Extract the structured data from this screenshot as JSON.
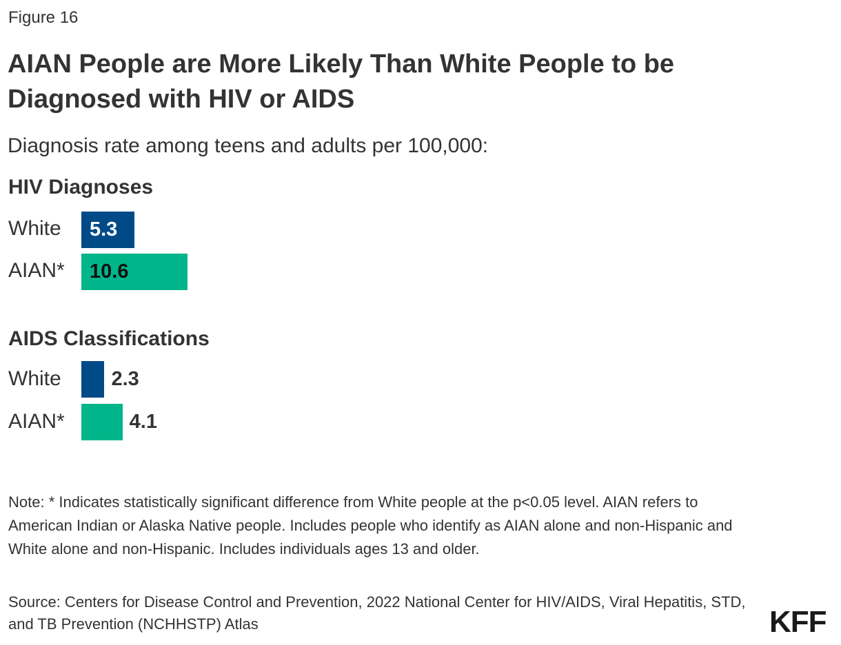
{
  "figure_label": "Figure 16",
  "logo": "KFF",
  "note": "Note: * Indicates statistically significant difference from White people at the p<0.05 level. AIAN refers to American Indian or Alaska Native people. Includes people who identify as AIAN alone and non-Hispanic and White alone and non-Hispanic. Includes individuals ages 13 and older.",
  "source": "Source: Centers for Disease Control and Prevention, 2022 National Center for HIV/AIDS, Viral Hepatitis, STD, and TB Prevention (NCHHSTP) Atlas",
  "chart_data": {
    "type": "bar",
    "orientation": "horizontal",
    "title": "AIAN People are More Likely Than White People to be Diagnosed with HIV or AIDS",
    "subtitle": "Diagnosis rate among teens and adults per 100,000:",
    "colors": {
      "White": "#004A88",
      "AIAN*": "#00B589"
    },
    "groups": [
      {
        "name": "HIV Diagnoses",
        "categories": [
          "White",
          "AIAN*"
        ],
        "values": [
          5.3,
          10.6
        ]
      },
      {
        "name": "AIDS Classifications",
        "categories": [
          "White",
          "AIAN*"
        ],
        "values": [
          2.3,
          4.1
        ]
      }
    ]
  }
}
